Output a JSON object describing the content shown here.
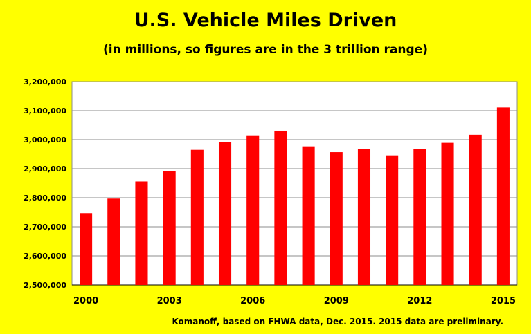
{
  "chart": {
    "title": "U.S. Vehicle Miles Driven",
    "subtitle": "(in millions, so figures are in the 3 trillion range)",
    "credit": "Komanoff, based on FHWA data, Dec. 2015. 2015 data are preliminary.",
    "colors": {
      "background": "#ffff00",
      "plot_area": "#ffffff",
      "bar": "#ff0000",
      "grid": "#8c8c8c"
    }
  },
  "chart_data": {
    "type": "bar",
    "title": "U.S. Vehicle Miles Driven",
    "subtitle": "(in millions, so figures are in the 3 trillion range)",
    "xlabel": "",
    "ylabel": "",
    "categories": [
      "2000",
      "2001",
      "2002",
      "2003",
      "2004",
      "2005",
      "2006",
      "2007",
      "2008",
      "2009",
      "2010",
      "2011",
      "2012",
      "2013",
      "2014",
      "2015"
    ],
    "x_tick_labels": [
      "2000",
      "2003",
      "2006",
      "2009",
      "2012",
      "2015"
    ],
    "values": [
      2747000,
      2797000,
      2856000,
      2891000,
      2965000,
      2991000,
      3015000,
      3031000,
      2977000,
      2957000,
      2967000,
      2946000,
      2969000,
      2989000,
      3017000,
      3111000
    ],
    "ylim": [
      2500000,
      3200000
    ],
    "y_ticks": [
      2500000,
      2600000,
      2700000,
      2800000,
      2900000,
      3000000,
      3100000,
      3200000
    ],
    "y_tick_labels": [
      "2,500,000",
      "2,600,000",
      "2,700,000",
      "2,800,000",
      "2,900,000",
      "3,000,000",
      "3,100,000",
      "3,200,000"
    ],
    "grid": true,
    "legend": "none"
  }
}
